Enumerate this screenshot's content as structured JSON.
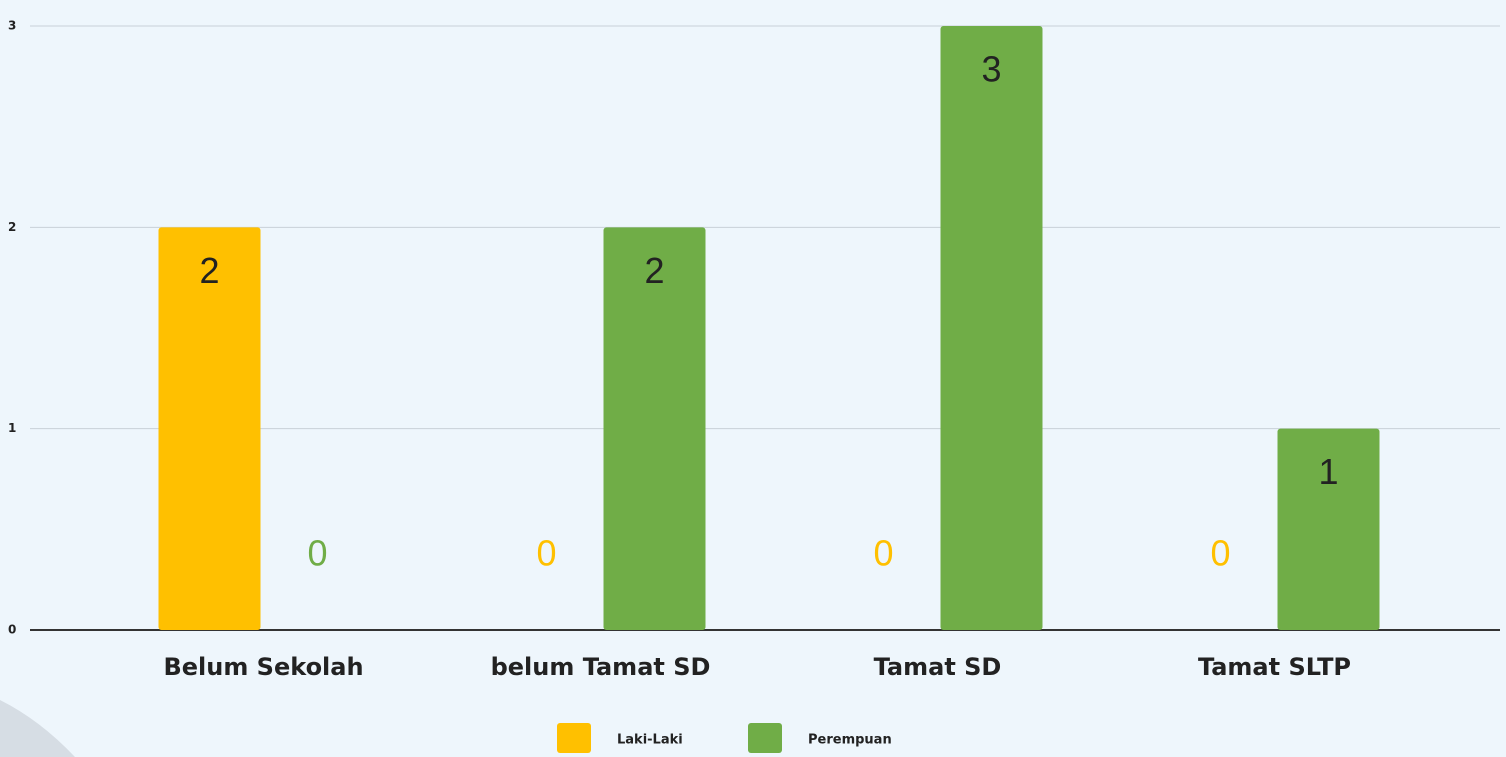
{
  "chart_data": {
    "type": "bar",
    "categories": [
      "Belum Sekolah",
      "belum Tamat SD",
      "Tamat SD",
      "Tamat SLTP"
    ],
    "series": [
      {
        "name": "Laki-Laki",
        "color": "#ffc000",
        "values": [
          2,
          0,
          0,
          0
        ]
      },
      {
        "name": "Perempuan",
        "color": "#70ad47",
        "values": [
          0,
          2,
          3,
          1
        ]
      }
    ],
    "ylim": [
      0,
      3
    ],
    "yticks": [
      0,
      1,
      2,
      3
    ],
    "grid": true,
    "legend": "bottom"
  }
}
